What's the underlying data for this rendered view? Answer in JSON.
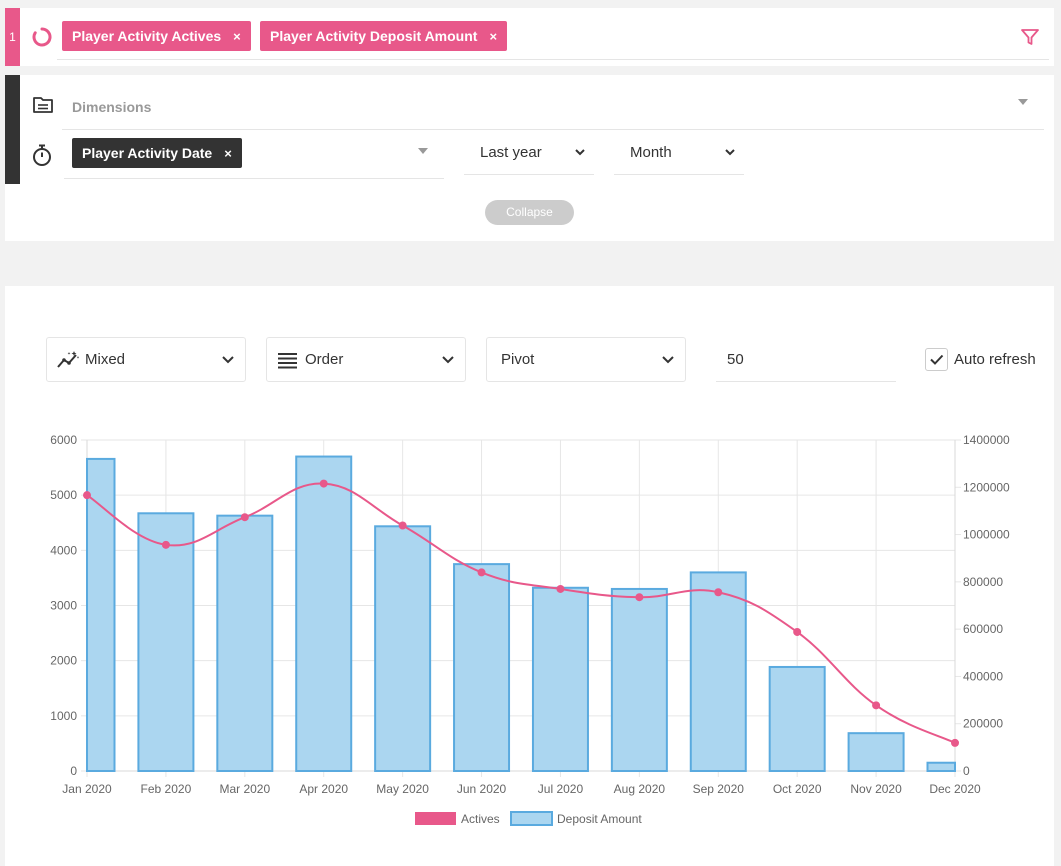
{
  "query": {
    "index": "1",
    "measures": [
      {
        "label": "Player Activity Actives"
      },
      {
        "label": "Player Activity Deposit Amount"
      }
    ],
    "remove_glyph": "×"
  },
  "dimensions": {
    "placeholder": "Dimensions",
    "time_dimension": "Player Activity Date",
    "date_range": "Last year",
    "granularity": "Month",
    "collapse_label": "Collapse"
  },
  "controls": {
    "chart_type": "Mixed",
    "order": "Order",
    "pivot": "Pivot",
    "limit": "50",
    "auto_refresh": "Auto refresh",
    "auto_refresh_checked": true
  },
  "colors": {
    "brand": "#e8588a",
    "dark": "#333333",
    "bar_fill": "#abd6f0",
    "bar_stroke": "#5aaadf",
    "line": "#e8588a"
  },
  "chart_data": {
    "type": "mixed",
    "categories": [
      "Jan 2020",
      "Feb 2020",
      "Mar 2020",
      "Apr 2020",
      "May 2020",
      "Jun 2020",
      "Jul 2020",
      "Aug 2020",
      "Sep 2020",
      "Oct 2020",
      "Nov 2020",
      "Dec 2020"
    ],
    "series": [
      {
        "name": "Actives",
        "type": "line",
        "axis": "left",
        "values": [
          5000,
          4100,
          4600,
          5210,
          4450,
          3600,
          3300,
          3150,
          3240,
          2520,
          1190,
          510
        ]
      },
      {
        "name": "Deposit Amount",
        "type": "bar",
        "axis": "right",
        "values": [
          1320000,
          1090000,
          1080000,
          1330000,
          1035000,
          875000,
          775000,
          770000,
          840000,
          440000,
          160000,
          35000
        ]
      }
    ],
    "left_axis": {
      "min": 0,
      "max": 6000,
      "ticks": [
        "0",
        "1000",
        "2000",
        "3000",
        "4000",
        "5000",
        "6000"
      ]
    },
    "right_axis": {
      "min": 0,
      "max": 1400000,
      "ticks": [
        "0",
        "200000",
        "400000",
        "600000",
        "800000",
        "1000000",
        "1200000",
        "1400000"
      ]
    },
    "grid": true,
    "legend_position": "bottom"
  }
}
